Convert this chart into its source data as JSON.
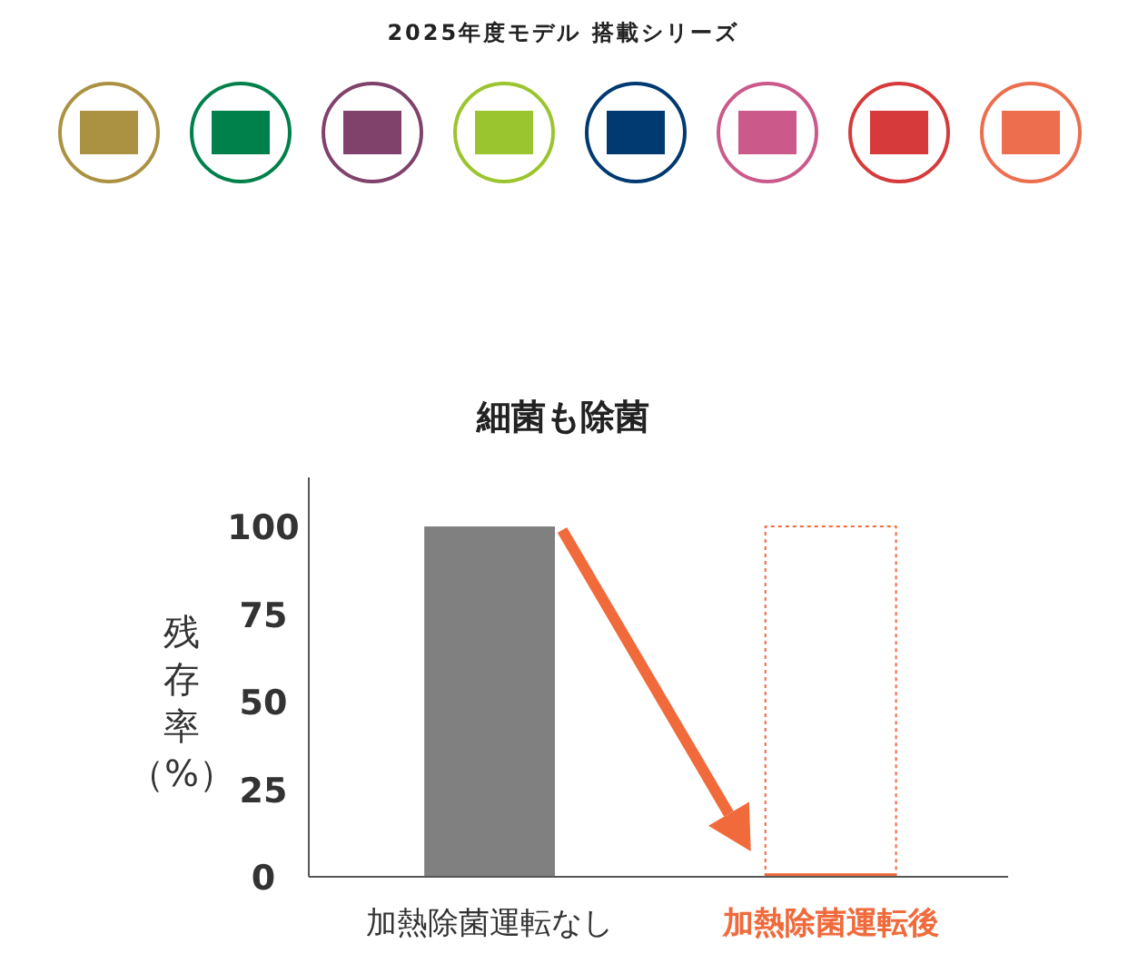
{
  "chart_data": {
    "type": "bar",
    "title": "細菌も除菌",
    "ylabel": "残存率（%）",
    "annotations": [
      "2025年度モデル 搭載シリーズ"
    ],
    "categories": [
      "加熱除菌運転なし",
      "加熱除菌運転後"
    ],
    "values": [
      100,
      1
    ],
    "colors": [
      "#808080",
      "#f06a3c"
    ],
    "ylim": [
      0,
      114
    ],
    "yticks": [
      0,
      25,
      50,
      75,
      100
    ],
    "grid": false,
    "ref_lines": [
      {
        "axis": "y",
        "value": 100,
        "color": "#f06a3c",
        "line_style": "dotted"
      }
    ]
  }
}
